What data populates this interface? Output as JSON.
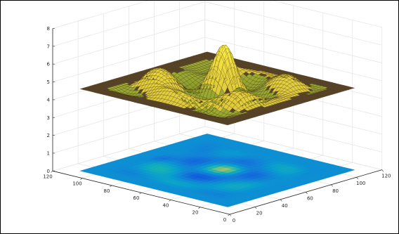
{
  "chart_data": {
    "type": "surface",
    "title": "",
    "xlabel": "",
    "ylabel": "",
    "zlabel": "",
    "x_range": [
      0,
      120
    ],
    "y_range": [
      0,
      120
    ],
    "z_range": [
      0,
      8
    ],
    "x_ticks": [
      "0",
      "20",
      "40",
      "60",
      "80",
      "100",
      "120"
    ],
    "y_ticks": [
      "0",
      "20",
      "40",
      "60",
      "80",
      "100",
      "120"
    ],
    "z_ticks": [
      "0",
      "1",
      "2",
      "3",
      "4",
      "5",
      "6",
      "7",
      "8"
    ],
    "grid": true,
    "surface": {
      "domain": [
        10,
        110
      ],
      "base_level": 4.6,
      "peak_level": 7.2,
      "min_level": 2.2,
      "pattern": "concentric ripples with local bumps, flat plateau outside",
      "colormap": "parula"
    },
    "contour_plane": {
      "z": 0,
      "domain": [
        10,
        110
      ],
      "colormap": "parula"
    }
  }
}
